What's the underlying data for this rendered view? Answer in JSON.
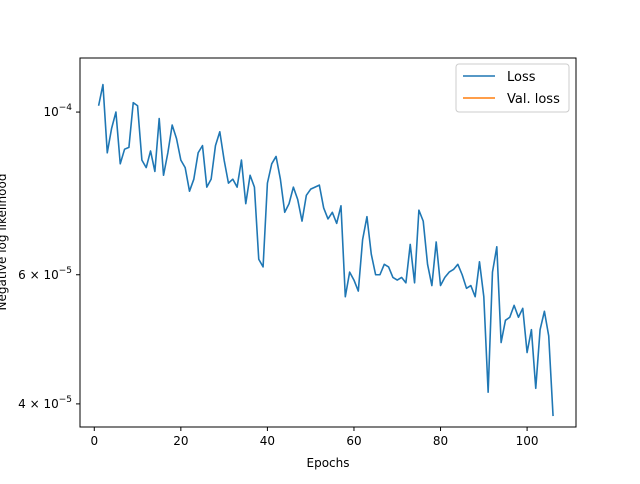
{
  "chart_data": {
    "type": "line",
    "title": "",
    "xlabel": "Epochs",
    "ylabel": "Negative log likelihood",
    "yscale": "log",
    "xlim": [
      -3.3,
      111.3
    ],
    "ylim": [
      3.72e-05,
      0.0001185
    ],
    "x_ticks": [
      0,
      20,
      40,
      60,
      80,
      100
    ],
    "x_tick_labels": [
      "0",
      "20",
      "40",
      "60",
      "80",
      "100"
    ],
    "y_ticks": [
      4e-05,
      6e-05,
      0.0001
    ],
    "y_tick_labels": [
      {
        "base": "4 × 10",
        "exp": "−5"
      },
      {
        "base": "6 × 10",
        "exp": "−5"
      },
      {
        "base": "10",
        "exp": "−4"
      }
    ],
    "grid": false,
    "legend": {
      "position": "top-right"
    },
    "series": [
      {
        "name": "Loss",
        "color": "#1f77b4",
        "x": [
          1,
          2,
          3,
          4,
          5,
          6,
          7,
          8,
          9,
          10,
          11,
          12,
          13,
          14,
          15,
          16,
          17,
          18,
          19,
          20,
          21,
          22,
          23,
          24,
          25,
          26,
          27,
          28,
          29,
          30,
          31,
          32,
          33,
          34,
          35,
          36,
          37,
          38,
          39,
          40,
          41,
          42,
          43,
          44,
          45,
          46,
          47,
          48,
          49,
          50,
          51,
          52,
          53,
          54,
          55,
          56,
          57,
          58,
          59,
          60,
          61,
          62,
          63,
          64,
          65,
          66,
          67,
          68,
          69,
          70,
          71,
          72,
          73,
          74,
          75,
          76,
          77,
          78,
          79,
          80,
          81,
          82,
          83,
          84,
          85,
          86,
          87,
          88,
          89,
          90,
          91,
          92,
          93,
          94,
          95,
          96,
          97,
          98,
          99,
          100,
          101,
          102,
          103,
          104,
          105,
          106
        ],
        "values": [
          0.000102,
          0.000109,
          8.8e-05,
          9.5e-05,
          0.0001,
          8.5e-05,
          8.9e-05,
          8.95e-05,
          0.000103,
          0.000102,
          8.6e-05,
          8.4e-05,
          8.85e-05,
          8.3e-05,
          9.8e-05,
          8.2e-05,
          8.8e-05,
          9.6e-05,
          9.2e-05,
          8.6e-05,
          8.4e-05,
          7.8e-05,
          8.1e-05,
          8.8e-05,
          9e-05,
          7.9e-05,
          8.1e-05,
          9e-05,
          9.4e-05,
          8.6e-05,
          8e-05,
          8.1e-05,
          7.9e-05,
          8.6e-05,
          7.5e-05,
          8.2e-05,
          7.9e-05,
          6.3e-05,
          6.15e-05,
          8e-05,
          8.5e-05,
          8.7e-05,
          8.1e-05,
          7.3e-05,
          7.5e-05,
          7.9e-05,
          7.6e-05,
          7.1e-05,
          7.7e-05,
          7.85e-05,
          7.9e-05,
          7.95e-05,
          7.4e-05,
          7.15e-05,
          7.3e-05,
          7.05e-05,
          7.45e-05,
          5.6e-05,
          6.05e-05,
          5.9e-05,
          5.7e-05,
          6.7e-05,
          7.2e-05,
          6.4e-05,
          6e-05,
          6e-05,
          6.2e-05,
          6.15e-05,
          5.95e-05,
          5.9e-05,
          5.95e-05,
          5.85e-05,
          6.6e-05,
          5.85e-05,
          7.35e-05,
          7.1e-05,
          6.2e-05,
          5.8e-05,
          6.65e-05,
          5.8e-05,
          5.95e-05,
          6.05e-05,
          6.1e-05,
          6.2e-05,
          6e-05,
          5.75e-05,
          5.8e-05,
          5.6e-05,
          6.25e-05,
          5.6e-05,
          4.15e-05,
          6.05e-05,
          6.55e-05,
          4.85e-05,
          5.2e-05,
          5.25e-05,
          5.45e-05,
          5.25e-05,
          5.4e-05,
          4.7e-05,
          5.05e-05,
          4.2e-05,
          5.05e-05,
          5.35e-05,
          4.95e-05,
          3.85e-05
        ]
      },
      {
        "name": "Val. loss",
        "color": "#ff7f0e",
        "x": [],
        "values": []
      }
    ]
  }
}
